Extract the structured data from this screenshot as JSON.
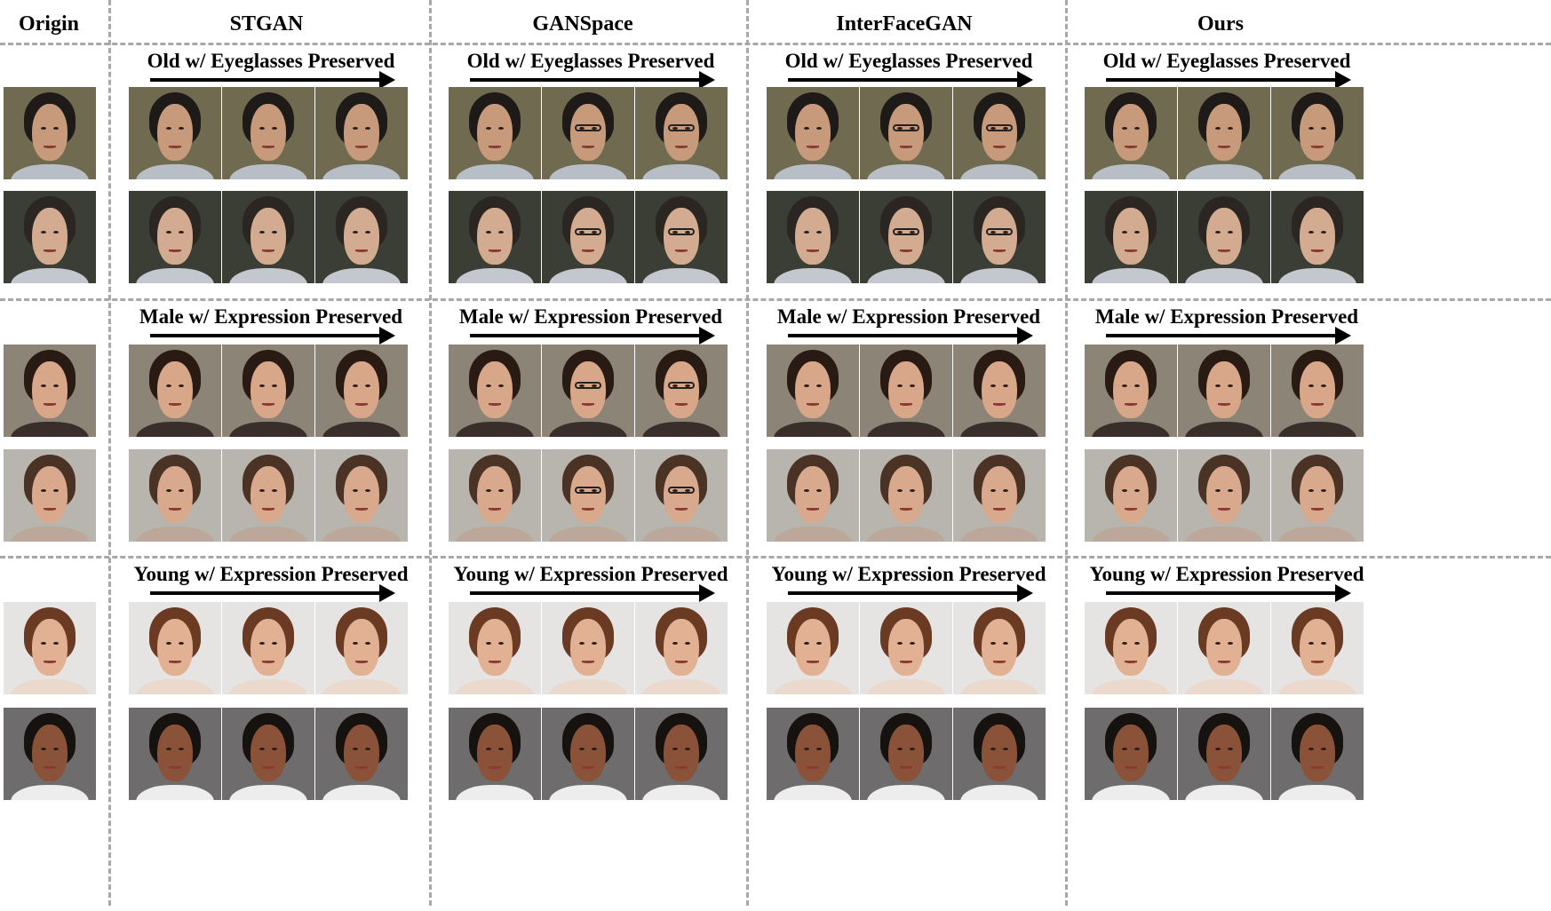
{
  "headers": [
    "Origin",
    "STGAN",
    "GANSpace",
    "InterFaceGAN",
    "Ours"
  ],
  "sections": [
    {
      "label": "Old w/ Eyeglasses Preserved",
      "faces": [
        {
          "skin": "#c89a7c",
          "hair": "#1e1a18",
          "bg": "#6f6a50",
          "cloth": "#b8bec6"
        },
        {
          "skin": "#d2ab90",
          "hair": "#2b2622",
          "bg": "#3b3e34",
          "cloth": "#c4c8ce"
        }
      ],
      "glasses": {
        "GANSpace": true,
        "InterFaceGAN": true
      }
    },
    {
      "label": "Male w/ Expression Preserved",
      "faces": [
        {
          "skin": "#d8a688",
          "hair": "#2a1a14",
          "bg": "#8d8478",
          "cloth": "#3a2e2a"
        },
        {
          "skin": "#d9a98d",
          "hair": "#4a3224",
          "bg": "#b8b4ae",
          "cloth": "#bba89a"
        }
      ],
      "glasses": {
        "GANSpace": true
      }
    },
    {
      "label": "Young w/ Expression Preserved",
      "faces": [
        {
          "skin": "#e2b193",
          "hair": "#6b3a22",
          "bg": "#e6e4e2",
          "cloth": "#ead9cc"
        },
        {
          "skin": "#8a5238",
          "hair": "#161210",
          "bg": "#6e6c6c",
          "cloth": "#ededed"
        }
      ],
      "glasses": {}
    }
  ]
}
